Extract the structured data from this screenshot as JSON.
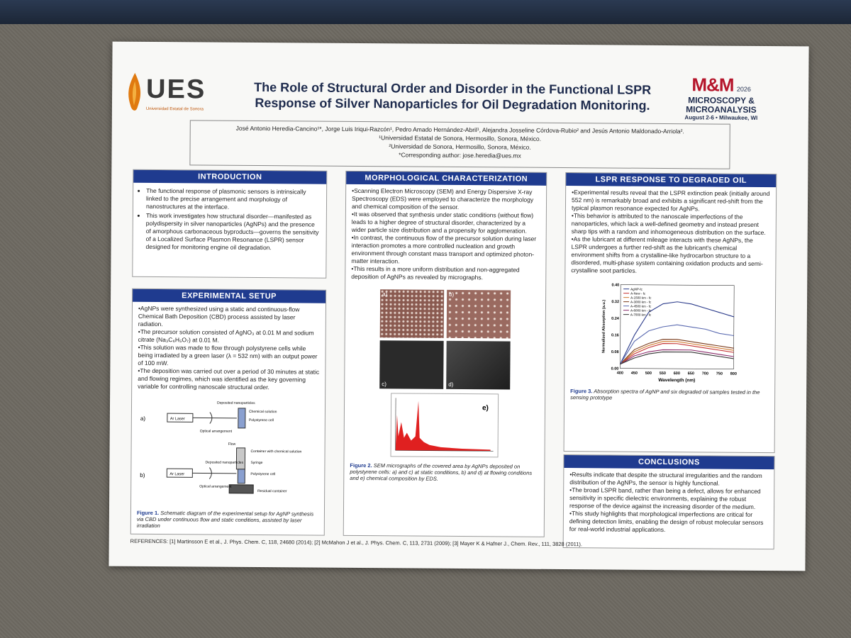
{
  "header": {
    "logo_left": {
      "name": "UES",
      "subtitle": "Universidad Estatal de Sonora"
    },
    "title_lines": [
      "The Role of Structural Order and Disorder in the Functional LSPR",
      "Response of Silver Nanoparticles for Oil Degradation Monitoring."
    ],
    "logo_right": {
      "big": "M&M",
      "year": "2026",
      "line1": "MICROSCOPY &",
      "line2": "MICROANALYSIS",
      "date": "August 2-6 • Milwaukee, WI"
    },
    "authors": "José Antonio Heredia-Cancino¹*, Jorge Luis Iriqui-Razcón¹, Pedro Amado Hernández-Abril¹, Alejandra Josseline Córdova-Rubio² and Jesús Antonio Maldonado-Arriola².",
    "affil1": "¹Universidad Estatal de Sonora, Hermosillo, Sonora, México.",
    "affil2": "²Universidad de Sonora, Hermosillo, Sonora, México.",
    "contact": "*Corresponding author: jose.heredia@ues.mx"
  },
  "introduction": {
    "heading": "INTRODUCTION",
    "bullets": [
      "The functional response of plasmonic sensors is intrinsically linked to the precise arrangement and morphology of nanostructures at the interface.",
      "This work investigates how structural disorder—manifested as polydispersity in silver nanoparticles (AgNPs) and the presence of amorphous carbonaceous byproducts—governs the sensitivity of a Localized Surface Plasmon Resonance (LSPR) sensor designed for monitoring engine oil degradation."
    ]
  },
  "experimental": {
    "heading": "EXPERIMENTAL SETUP",
    "paragraphs": [
      "•AgNPs were synthesized using a static and continuous-flow Chemical Bath Deposition (CBD) process assisted by laser radiation.",
      "•The precursor solution consisted of AgNO₃ at 0.01 M and sodium citrate (Na₃C₆H₅O₇) at 0.01 M.",
      "•This solution was made to flow through polystyrene cells while being irradiated by a green laser (λ = 532 nm) with an output power of 100 mW.",
      "•The deposition was carried out over a period of 30 minutes at static and flowing regimes, which was identified as the key governing variable for controlling nanoscale structural order."
    ],
    "diagram_labels": {
      "a": "a)",
      "b": "b)",
      "laser": "Ar Laser",
      "deposited": "Deposited nanoparticles",
      "chem": "Chemical solution",
      "cell": "Polystyrene cell",
      "optical": "Optical arrangement",
      "flow": "Flow",
      "container": "Container with chemical solution",
      "syringe": "Syringe",
      "residual": "Residual container"
    },
    "fig_label": "Figure 1.",
    "fig_caption": "Schematic diagram of the experimental setup for AgNP synthesis via CBD under continuous flow and static conditions, assisted by laser irradiation"
  },
  "morphology": {
    "heading": "MORPHOLOGICAL CHARACTERIZATION",
    "paragraphs": [
      "•Scanning Electron Microscopy (SEM) and Energy Dispersive X-ray Spectroscopy (EDS) were employed to characterize the morphology and chemical composition of the sensor.",
      "•It was observed that synthesis under static conditions (without flow) leads to a higher degree of structural disorder, characterized by a wider particle size distribution and a propensity for agglomeration.",
      "•In contrast, the continuous flow of the precursor solution during laser interaction promotes a more controlled nucleation and growth environment through constant mass transport and optimized photon-matter interaction.",
      "•This results in a more uniform distribution and non-aggregated deposition of AgNPs as revealed by micrographs."
    ],
    "panel_labels": [
      "a)",
      "b)",
      "c)",
      "d)",
      "e)"
    ],
    "fig_label": "Figure 2.",
    "fig_caption": "SEM micrographs of the covered area by AgNPs deposited on polystyrene cells: a) and c) at static conditions, b) and d) at flowing conditions and e) chemical composition by EDS."
  },
  "lspr": {
    "heading": "LSPR RESPONSE TO DEGRADED OIL",
    "paragraphs": [
      "•Experimental results reveal that the LSPR extinction peak (initially around 552 nm) is remarkably broad and exhibits a significant red-shift from the typical plasmon resonance expected for AgNPs.",
      "•This behavior is attributed to the nanoscale imperfections of the nanoparticles, which lack a well-defined geometry and instead present sharp tips with a random and inhomogeneous distribution on the surface.",
      "•As the lubricant at different mileage interacts with these AgNPs, the LSPR undergoes a further red-shift as the lubricant's chemical environment shifts from a crystalline-like hydrocarbon structure to a disordered, multi-phase system containing oxidation products and semi-crystalline soot particles."
    ],
    "fig_label": "Figure 3.",
    "fig_caption": "Absorption spectra of AgNP and six degraded oil samples tested in the sensing prototype"
  },
  "conclusions": {
    "heading": "CONCLUSIONS",
    "paragraphs": [
      "•Results indicate that despite the structural irregularities and the random distribution of the AgNPs, the sensor is highly functional.",
      "•The broad LSPR band, rather than being a defect, allows for enhanced sensitivity in specific dielectric environments, explaining the robust response of the device against the increasing disorder of the medium.",
      "•This study highlights that morphological imperfections are critical for defining detection limits, enabling the design of robust molecular sensors for real-world industrial applications."
    ]
  },
  "references": "REFERENCES: [1] Martinsson E et al., J. Phys. Chem. C, 118, 24680 (2014); [2] McMahon J et al., J. Phys. Chem. C, 113, 2731 (2009); [3] Mayer K & Hafner J., Chem. Rev., 111, 3828 (2011).",
  "chart_data": {
    "type": "line",
    "xlabel": "Wavelength (nm)",
    "ylabel": "Normalized Absorption (a.u.)",
    "xlim": [
      400,
      800
    ],
    "ylim": [
      0.0,
      0.4
    ],
    "xticks": [
      400,
      450,
      500,
      550,
      600,
      650,
      700,
      750,
      800
    ],
    "yticks": [
      0.0,
      0.08,
      0.16,
      0.24,
      0.32,
      0.4
    ],
    "legend_position": "top-left",
    "x": [
      400,
      450,
      500,
      550,
      600,
      650,
      700,
      750,
      800
    ],
    "series": [
      {
        "name": "AgNP-fc",
        "color": "#2a3a8a",
        "values": [
          0.02,
          0.16,
          0.27,
          0.31,
          0.32,
          0.31,
          0.29,
          0.27,
          0.25
        ]
      },
      {
        "name": "A-New - fc",
        "color": "#c43030",
        "values": [
          0.02,
          0.07,
          0.1,
          0.12,
          0.12,
          0.11,
          0.1,
          0.09,
          0.08
        ]
      },
      {
        "name": "A-1500 km - fc",
        "color": "#d07a30",
        "values": [
          0.02,
          0.08,
          0.11,
          0.13,
          0.13,
          0.12,
          0.11,
          0.1,
          0.09
        ]
      },
      {
        "name": "A-3000 km - fc",
        "color": "#7a3a1a",
        "values": [
          0.02,
          0.09,
          0.12,
          0.14,
          0.14,
          0.13,
          0.12,
          0.11,
          0.1
        ]
      },
      {
        "name": "A-4500 km - fc",
        "color": "#5a6ab0",
        "values": [
          0.02,
          0.13,
          0.18,
          0.2,
          0.21,
          0.2,
          0.19,
          0.17,
          0.16
        ]
      },
      {
        "name": "A-6000 km - fc",
        "color": "#8a2a6a",
        "values": [
          0.02,
          0.06,
          0.08,
          0.09,
          0.09,
          0.09,
          0.08,
          0.07,
          0.06
        ]
      },
      {
        "name": "A-7000 km - fc",
        "color": "#333333",
        "values": [
          0.02,
          0.05,
          0.07,
          0.08,
          0.08,
          0.08,
          0.07,
          0.06,
          0.05
        ]
      }
    ]
  }
}
